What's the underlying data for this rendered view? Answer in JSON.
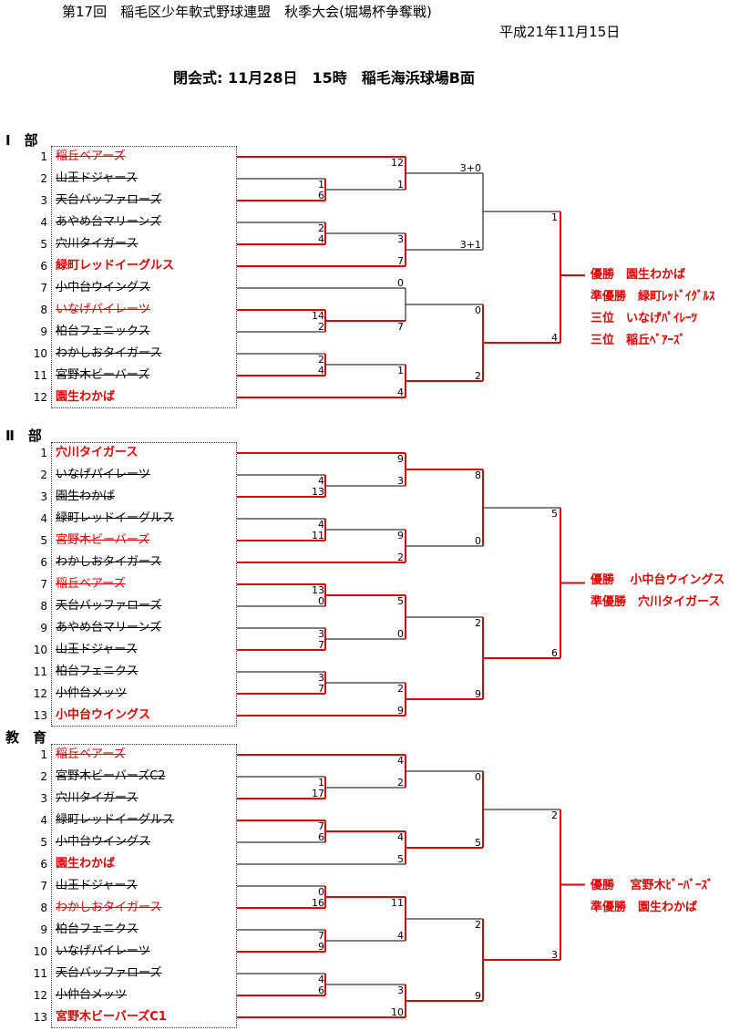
{
  "header": {
    "title": "第17回　稲毛区少年軟式野球連盟　秋季大会(堀場杯争奪戦)",
    "date": "平成21年11月15日",
    "closing": "閉会式: 11月28日　15時　稲毛海浜球場B面"
  },
  "divisions": [
    {
      "label": "Ⅰ　部",
      "teams": [
        {
          "no": "1",
          "name": "稲丘ベアーズ",
          "strike": true,
          "red": true,
          "bold": false
        },
        {
          "no": "2",
          "name": "山王ドジャース",
          "strike": true,
          "red": false,
          "bold": false
        },
        {
          "no": "3",
          "name": "天台バッファローズ",
          "strike": true,
          "red": false,
          "bold": false
        },
        {
          "no": "4",
          "name": "あやめ台マリーンズ",
          "strike": true,
          "red": false,
          "bold": false
        },
        {
          "no": "5",
          "name": "穴川タイガース",
          "strike": true,
          "red": false,
          "bold": false
        },
        {
          "no": "6",
          "name": "緑町レッドイーグルス",
          "strike": false,
          "red": true,
          "bold": true
        },
        {
          "no": "7",
          "name": "小中台ウイングス",
          "strike": true,
          "red": false,
          "bold": false
        },
        {
          "no": "8",
          "name": "いなげパイレーツ",
          "strike": true,
          "red": true,
          "bold": false
        },
        {
          "no": "9",
          "name": "柏台フェニックス",
          "strike": true,
          "red": false,
          "bold": false
        },
        {
          "no": "10",
          "name": "わかしおタイガース",
          "strike": true,
          "red": false,
          "bold": false
        },
        {
          "no": "11",
          "name": "宮野木ビーバーズ",
          "strike": true,
          "red": false,
          "bold": false
        },
        {
          "no": "12",
          "name": "園生わかば",
          "strike": false,
          "red": true,
          "bold": true
        }
      ],
      "results": [
        "優勝　園生わかば",
        "準優勝　緑町ﾚｯﾄﾞｲｸﾞﾙｽ",
        "三位　いなげﾊﾟｲﾚｰﾂ",
        "三位　稲丘ﾍﾞｱｰｽﾞ"
      ]
    },
    {
      "label": "Ⅱ　部",
      "teams": [
        {
          "no": "1",
          "name": "穴川タイガース",
          "strike": false,
          "red": true,
          "bold": true
        },
        {
          "no": "2",
          "name": "いなげパイレーツ",
          "strike": true,
          "red": false,
          "bold": false
        },
        {
          "no": "3",
          "name": "園生わかば",
          "strike": true,
          "red": false,
          "bold": false
        },
        {
          "no": "4",
          "name": "緑町レッドイーグルス",
          "strike": true,
          "red": false,
          "bold": false
        },
        {
          "no": "5",
          "name": "宮野木ビーバーズ",
          "strike": true,
          "red": true,
          "bold": false
        },
        {
          "no": "6",
          "name": "わかしおタイガース",
          "strike": true,
          "red": false,
          "bold": false
        },
        {
          "no": "7",
          "name": "稲丘ベアーズ",
          "strike": true,
          "red": true,
          "bold": false
        },
        {
          "no": "8",
          "name": "天台バッファローズ",
          "strike": true,
          "red": false,
          "bold": false
        },
        {
          "no": "9",
          "name": "あやめ台マリーンズ",
          "strike": true,
          "red": false,
          "bold": false
        },
        {
          "no": "10",
          "name": "山王ドジャース",
          "strike": true,
          "red": false,
          "bold": false
        },
        {
          "no": "11",
          "name": "柏台フェニクス",
          "strike": true,
          "red": false,
          "bold": false
        },
        {
          "no": "12",
          "name": "小仲台メッツ",
          "strike": true,
          "red": false,
          "bold": false
        },
        {
          "no": "13",
          "name": "小中台ウイングス",
          "strike": false,
          "red": true,
          "bold": true
        }
      ],
      "results": [
        "優勝　 小中台ウイングス",
        "準優勝　穴川タイガース"
      ]
    },
    {
      "label": "教　育",
      "teams": [
        {
          "no": "1",
          "name": "稲丘ベアーズ",
          "strike": true,
          "red": true,
          "bold": false
        },
        {
          "no": "2",
          "name": "宮野木ビーバーズC2",
          "strike": true,
          "red": false,
          "bold": false
        },
        {
          "no": "3",
          "name": "穴川タイガース",
          "strike": true,
          "red": false,
          "bold": false
        },
        {
          "no": "4",
          "name": "緑町レッドイーグルス",
          "strike": true,
          "red": false,
          "bold": false
        },
        {
          "no": "5",
          "name": "小中台ウイングス",
          "strike": true,
          "red": false,
          "bold": false
        },
        {
          "no": "6",
          "name": "園生わかば",
          "strike": false,
          "red": true,
          "bold": true
        },
        {
          "no": "7",
          "name": "山王ドジャース",
          "strike": true,
          "red": false,
          "bold": false
        },
        {
          "no": "8",
          "name": "わかしおタイガース",
          "strike": true,
          "red": true,
          "bold": false
        },
        {
          "no": "9",
          "name": "柏台フェニクス",
          "strike": true,
          "red": false,
          "bold": false
        },
        {
          "no": "10",
          "name": "いなげパイレーツ",
          "strike": true,
          "red": false,
          "bold": false
        },
        {
          "no": "11",
          "name": "天台バッファローズ",
          "strike": true,
          "red": false,
          "bold": false
        },
        {
          "no": "12",
          "name": "小仲台メッツ",
          "strike": true,
          "red": false,
          "bold": false
        },
        {
          "no": "13",
          "name": "宮野木ビーバーズC1",
          "strike": false,
          "red": true,
          "bold": true
        }
      ],
      "results": [
        "優勝　 宮野木ﾋﾞｰﾊﾞｰｽﾞ",
        "準優勝　園生わかば"
      ]
    }
  ],
  "scores": {
    "d1": {
      "r1a": [
        "1",
        "6"
      ],
      "r1b": [
        "2",
        "4"
      ],
      "r1c": [
        "2",
        "4"
      ],
      "r2": [
        "12",
        "1",
        "3",
        "7",
        "0",
        "7",
        "1",
        "4"
      ],
      "r2b": [
        "14",
        "2"
      ],
      "r3": [
        "3+0",
        "3+1",
        "0",
        "2"
      ],
      "f": [
        "1",
        "4"
      ]
    },
    "d2": {
      "r1": [
        "4",
        "13",
        "4",
        "11",
        "13",
        "0",
        "3",
        "7",
        "3",
        "7"
      ],
      "r2": [
        "9",
        "3",
        "9",
        "2",
        "5",
        "0",
        "2",
        "9"
      ],
      "r3": [
        "8",
        "0",
        "2",
        "9"
      ],
      "f": [
        "5",
        "6"
      ]
    },
    "d3": {
      "r1": [
        "1",
        "17",
        "7",
        "6",
        "0",
        "16",
        "7",
        "9",
        "4",
        "6"
      ],
      "r2": [
        "4",
        "2",
        "4",
        "5",
        "11",
        "4",
        "3",
        "10"
      ],
      "r3": [
        "0",
        "5",
        "2",
        "9"
      ],
      "f": [
        "2",
        "3"
      ]
    }
  },
  "colors": {
    "win": "#e00000",
    "line": "#000000"
  }
}
